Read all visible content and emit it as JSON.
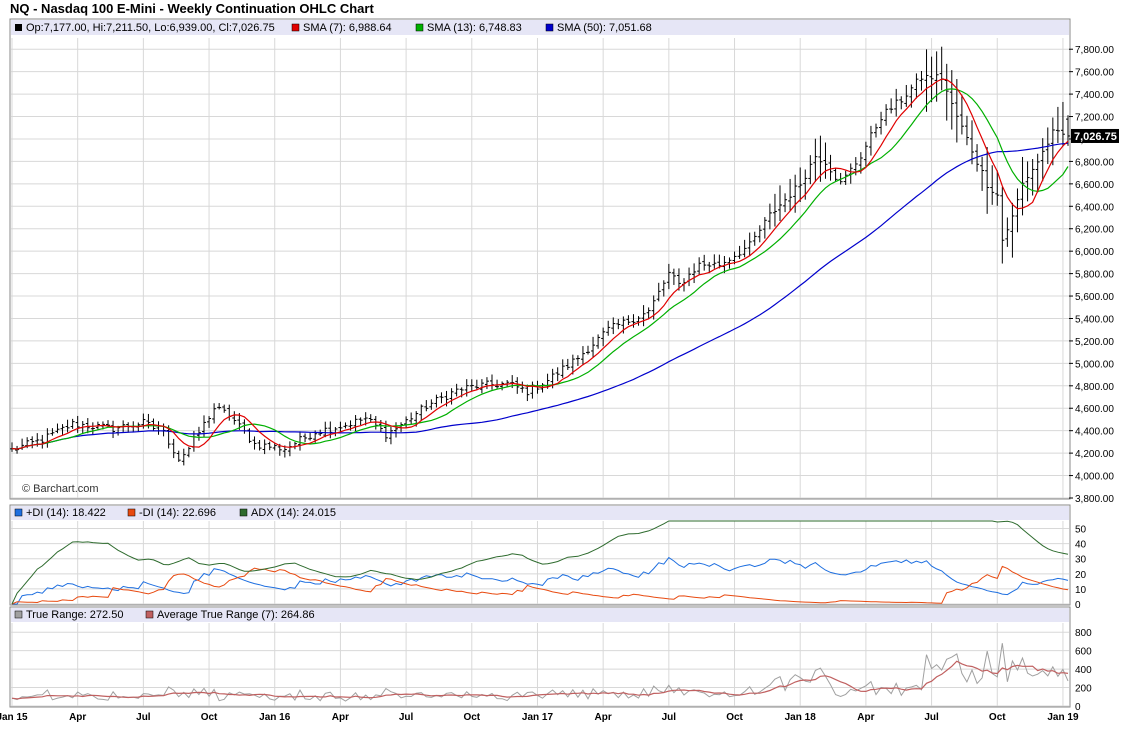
{
  "title": "NQ - Nasdaq 100 E-Mini - Weekly Continuation OHLC Chart",
  "price_panel": {
    "legend": {
      "ohlc": "Op:7,177.00, Hi:7,211.50, Lo:6,939.00, Cl:7,026.75",
      "sma7": "SMA (7): 6,988.64",
      "sma13": "SMA (13): 6,748.83",
      "sma50": "SMA (50): 7,051.68"
    },
    "watermark": "© Barchart.com",
    "last_price_label": "7,026.75"
  },
  "dmi_panel": {
    "legend": {
      "pdi": "+DI (14): 18.422",
      "mdi": "-DI (14): 22.696",
      "adx": "ADX (14): 24.015"
    }
  },
  "tr_panel": {
    "legend": {
      "tr": "True Range: 272.50",
      "atr": "Average True Range (7): 264.86"
    }
  },
  "colors": {
    "sma7": "#e00000",
    "sma13": "#00b000",
    "sma50": "#0000cc",
    "pdi": "#1e6fe0",
    "mdi": "#e84a10",
    "adx": "#2e6b2e",
    "tr": "#a0a0a0",
    "atr": "#c06060",
    "legend_bg": "#e6e6f6",
    "grid": "#d8d8d8"
  },
  "chart_data": [
    {
      "type": "ohlc",
      "title": "NQ - Nasdaq 100 E-Mini - Weekly Continuation OHLC Chart",
      "ylim": [
        3800,
        7900
      ],
      "y_ticks": [
        3800,
        4000,
        4200,
        4400,
        4600,
        4800,
        5000,
        5200,
        5400,
        5600,
        5800,
        6000,
        6200,
        6400,
        6600,
        6800,
        7000,
        7200,
        7400,
        7600,
        7800
      ],
      "y_tick_labels": [
        "3,800.00",
        "4,000.00",
        "4,200.00",
        "4,400.00",
        "4,600.00",
        "4,800.00",
        "5,000.00",
        "5,200.00",
        "5,400.00",
        "5,600.00",
        "5,800.00",
        "6,000.00",
        "6,200.00",
        "6,400.00",
        "6,600.00",
        "6,800.00",
        "7,000.00",
        "7,200.00",
        "7,400.00",
        "7,600.00",
        "7,800.00"
      ],
      "x_labels": [
        "Jan 15",
        "Apr",
        "Jul",
        "Oct",
        "Jan 16",
        "Apr",
        "Jul",
        "Oct",
        "Jan 17",
        "Apr",
        "Jul",
        "Oct",
        "Jan 18",
        "Apr",
        "Jul",
        "Oct",
        "Jan 19"
      ],
      "grid": true,
      "frequency": "weekly",
      "last_bar": {
        "open": 7177.0,
        "high": 7211.5,
        "low": 6939.0,
        "close": 7026.75
      },
      "close_path": [
        [
          0,
          4230
        ],
        [
          6,
          4320
        ],
        [
          12,
          4460
        ],
        [
          20,
          4420
        ],
        [
          26,
          4470
        ],
        [
          30,
          4380
        ],
        [
          33,
          4150
        ],
        [
          35,
          4240
        ],
        [
          40,
          4600
        ],
        [
          43,
          4540
        ],
        [
          48,
          4280
        ],
        [
          54,
          4240
        ],
        [
          56,
          4290
        ],
        [
          60,
          4390
        ],
        [
          66,
          4450
        ],
        [
          70,
          4510
        ],
        [
          74,
          4370
        ],
        [
          76,
          4420
        ],
        [
          82,
          4620
        ],
        [
          88,
          4760
        ],
        [
          92,
          4800
        ],
        [
          98,
          4820
        ],
        [
          102,
          4750
        ],
        [
          106,
          4850
        ],
        [
          112,
          5050
        ],
        [
          118,
          5300
        ],
        [
          122,
          5380
        ],
        [
          126,
          5460
        ],
        [
          130,
          5800
        ],
        [
          132,
          5700
        ],
        [
          136,
          5880
        ],
        [
          140,
          5880
        ],
        [
          146,
          6050
        ],
        [
          150,
          6320
        ],
        [
          156,
          6600
        ],
        [
          159,
          6850
        ],
        [
          161,
          6800
        ],
        [
          164,
          6600
        ],
        [
          168,
          6850
        ],
        [
          172,
          7200
        ],
        [
          176,
          7350
        ],
        [
          180,
          7550
        ],
        [
          184,
          7550
        ],
        [
          186,
          7300
        ],
        [
          188,
          7100
        ],
        [
          190,
          6900
        ],
        [
          193,
          6600
        ],
        [
          195,
          6500
        ],
        [
          196,
          6100
        ],
        [
          198,
          6300
        ],
        [
          200,
          6600
        ],
        [
          203,
          6800
        ],
        [
          206,
          7050
        ],
        [
          209,
          7026.75
        ]
      ]
    },
    {
      "type": "line",
      "indicator": "DMI",
      "ylim": [
        0,
        55
      ],
      "y_ticks": [
        0,
        10,
        20,
        30,
        40,
        50
      ],
      "series": [
        {
          "name": "+DI (14)",
          "last": 18.422
        },
        {
          "name": "-DI (14)",
          "last": 22.696
        },
        {
          "name": "ADX (14)",
          "last": 24.015
        }
      ]
    },
    {
      "type": "line",
      "indicator": "True Range",
      "ylim": [
        0,
        900
      ],
      "y_ticks": [
        0,
        200,
        400,
        600,
        800
      ],
      "series": [
        {
          "name": "True Range",
          "last": 272.5
        },
        {
          "name": "Average True Range (7)",
          "last": 264.86
        }
      ]
    }
  ]
}
